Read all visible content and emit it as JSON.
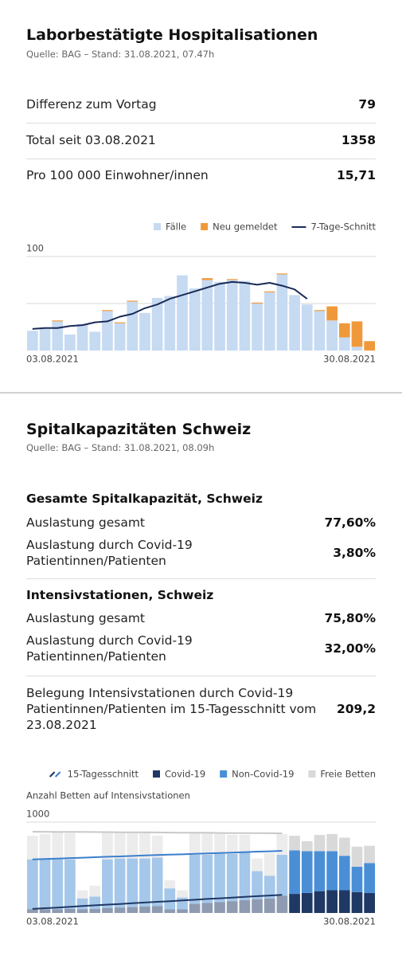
{
  "hospital": {
    "title": "Laborbestätigte Hospitalisationen",
    "source": "Quelle: BAG – Stand: 31.08.2021, 07.47h",
    "stats": [
      {
        "label": "Differenz zum Vortag",
        "value": 79
      },
      {
        "label": "Total seit 03.08.2021",
        "value": 1358
      },
      {
        "label": "Pro 100 000 Einwohner/innen",
        "value": "15,71"
      }
    ]
  },
  "capacity": {
    "title": "Spitalkapazitäten Schweiz",
    "source": "Quelle: BAG – Stand: 31.08.2021, 08.09h",
    "groups": [
      {
        "heading": "Gesamte Spitalkapazität, Schweiz",
        "rows": [
          {
            "label": "Auslastung gesamt",
            "value": "77,60%"
          },
          {
            "label": "Auslastung durch Covid-19 Patientinnen/Patienten",
            "value": "3,80%"
          }
        ]
      },
      {
        "heading": "Intensivstationen, Schweiz",
        "rows": [
          {
            "label": "Auslastung gesamt",
            "value": "75,80%"
          },
          {
            "label": "Auslastung durch Covid-19 Patientinnen/Patienten",
            "value": "32,00%"
          }
        ]
      }
    ],
    "occupancy": {
      "label": "Belegung Intensivstationen durch Covid-19 Patientinnen/Patienten im 15-Tagesschnitt vom 23.08.2021",
      "value": "209,2"
    }
  },
  "chart_data": [
    {
      "type": "bar",
      "stacked": true,
      "categories": [
        "03.08.2021",
        null,
        null,
        null,
        null,
        null,
        null,
        null,
        null,
        null,
        null,
        null,
        null,
        null,
        null,
        null,
        null,
        null,
        null,
        null,
        null,
        null,
        null,
        null,
        null,
        null,
        null,
        "30.08.2021"
      ],
      "series": [
        {
          "name": "Fälle",
          "color": "#c6daf1",
          "values": [
            21,
            23,
            31,
            17,
            28,
            20,
            42,
            29,
            52,
            40,
            56,
            58,
            80,
            66,
            75,
            73,
            75,
            74,
            50,
            62,
            81,
            59,
            49,
            42,
            32,
            14,
            4,
            0
          ]
        },
        {
          "name": "Neu gemeldet",
          "color": "#f0993a",
          "values": [
            0,
            0,
            1,
            0,
            0,
            0,
            1,
            1,
            1,
            0,
            0,
            0,
            0,
            0,
            2,
            0,
            1,
            0,
            1,
            1,
            1,
            0,
            0,
            1,
            15,
            15,
            27,
            10
          ]
        },
        {
          "name": "7-Tage-Schnitt",
          "type": "line",
          "color": "#1a2b57",
          "values": [
            23,
            24,
            24,
            26,
            27,
            30,
            31,
            36,
            39,
            45,
            49,
            55,
            59,
            63,
            67,
            71,
            73,
            72,
            70,
            72,
            69,
            65,
            55,
            null,
            null,
            null,
            null,
            null
          ]
        }
      ],
      "ylim": [
        0,
        100
      ],
      "yticks": [
        100
      ],
      "minor_gridlines": [
        50
      ],
      "legend": "top-right"
    },
    {
      "type": "bar",
      "stacked": true,
      "y_label": "Anzahl Betten auf Intensivstationen",
      "average_name": "15-Tagesschnitt",
      "categories": [
        "03.08.2021",
        null,
        null,
        null,
        null,
        null,
        null,
        null,
        null,
        null,
        null,
        null,
        null,
        null,
        null,
        null,
        null,
        null,
        null,
        null,
        null,
        null,
        null,
        null,
        null,
        null,
        null,
        "30.08.2021"
      ],
      "series": [
        {
          "name": "Covid-19",
          "color": "#1f3864",
          "line_color": "#1f3864",
          "values": [
            40,
            40,
            40,
            45,
            40,
            45,
            55,
            60,
            65,
            70,
            75,
            40,
            40,
            100,
            110,
            120,
            130,
            140,
            150,
            160,
            190,
            210,
            220,
            240,
            250,
            250,
            230,
            220
          ],
          "avg_values": [
            45,
            53,
            60,
            68,
            76,
            84,
            92,
            99,
            107,
            115,
            123,
            130,
            138,
            146,
            154,
            161,
            169,
            177,
            185,
            192,
            200,
            null,
            null,
            null,
            null,
            null,
            null,
            null
          ]
        },
        {
          "name": "Non-Covid-19",
          "color": "#4a8fd6",
          "line_color": "#3a7fcc",
          "values": [
            550,
            550,
            550,
            545,
            120,
            135,
            535,
            540,
            535,
            530,
            535,
            230,
            130,
            540,
            530,
            530,
            520,
            530,
            310,
            250,
            450,
            480,
            460,
            440,
            430,
            380,
            280,
            330
          ],
          "avg_values": [
            545,
            542,
            539,
            536,
            533,
            530,
            527,
            524,
            521,
            518,
            515,
            512,
            508,
            505,
            502,
            499,
            496,
            493,
            490,
            487,
            484,
            null,
            null,
            null,
            null,
            null,
            null,
            null
          ]
        },
        {
          "name": "Freie Betten",
          "color": "#d9d9d9",
          "line_color": "#c8c8c8",
          "values": [
            260,
            280,
            300,
            290,
            90,
            120,
            290,
            280,
            290,
            290,
            240,
            90,
            80,
            240,
            240,
            220,
            210,
            190,
            140,
            250,
            230,
            160,
            110,
            180,
            190,
            200,
            220,
            190
          ],
          "avg_values": [
            305,
            299,
            294,
            288,
            283,
            277,
            271,
            266,
            260,
            255,
            249,
            243,
            238,
            232,
            227,
            221,
            215,
            210,
            204,
            199,
            193,
            null,
            null,
            null,
            null,
            null,
            null,
            null
          ]
        }
      ],
      "ylim": [
        0,
        1000
      ],
      "yticks": [
        1000
      ],
      "legend": "top-right"
    }
  ]
}
